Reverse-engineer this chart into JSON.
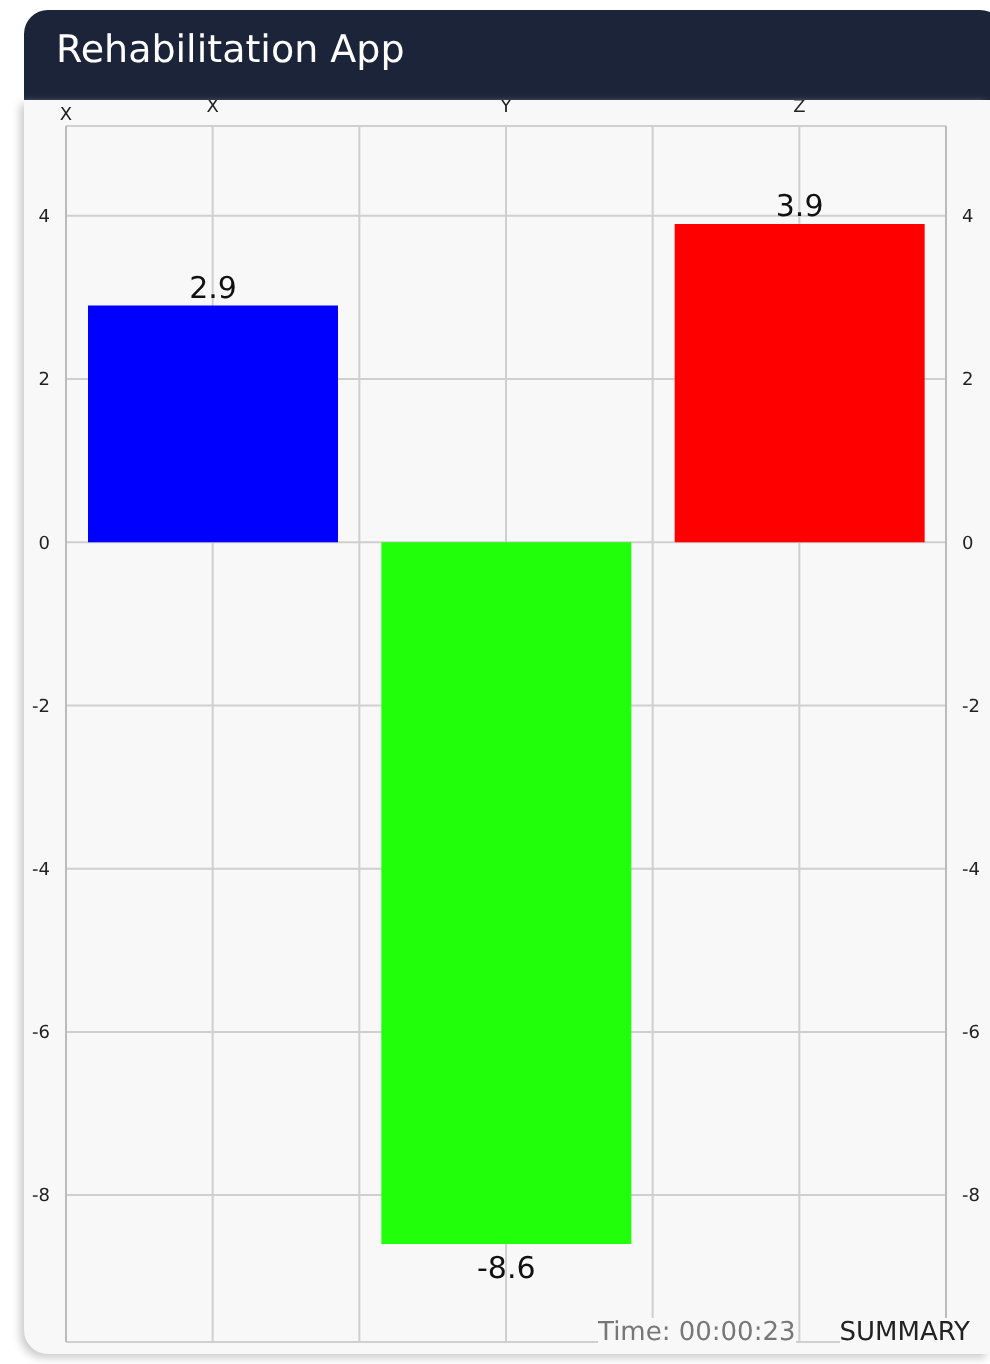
{
  "chart_data": {
    "type": "bar",
    "title": "Rehabilitation App",
    "categories": [
      "X",
      "Y",
      "Z"
    ],
    "values": [
      2.9,
      -8.6,
      3.9
    ],
    "colors": [
      "#0000ff",
      "#22ff0a",
      "#ff0000"
    ],
    "ylim": [
      -9.8,
      5.1
    ],
    "yticks": [
      -8,
      -6,
      -4,
      -2,
      0,
      2,
      4
    ],
    "y2lim": [
      -9.8,
      5.1
    ],
    "y2ticks": [
      -8,
      -6,
      -4,
      -2,
      0,
      2,
      4
    ],
    "grid": true,
    "data_labels": true,
    "annotations": [
      "X",
      "Time: 00:00:23",
      "SUMMARY"
    ]
  }
}
